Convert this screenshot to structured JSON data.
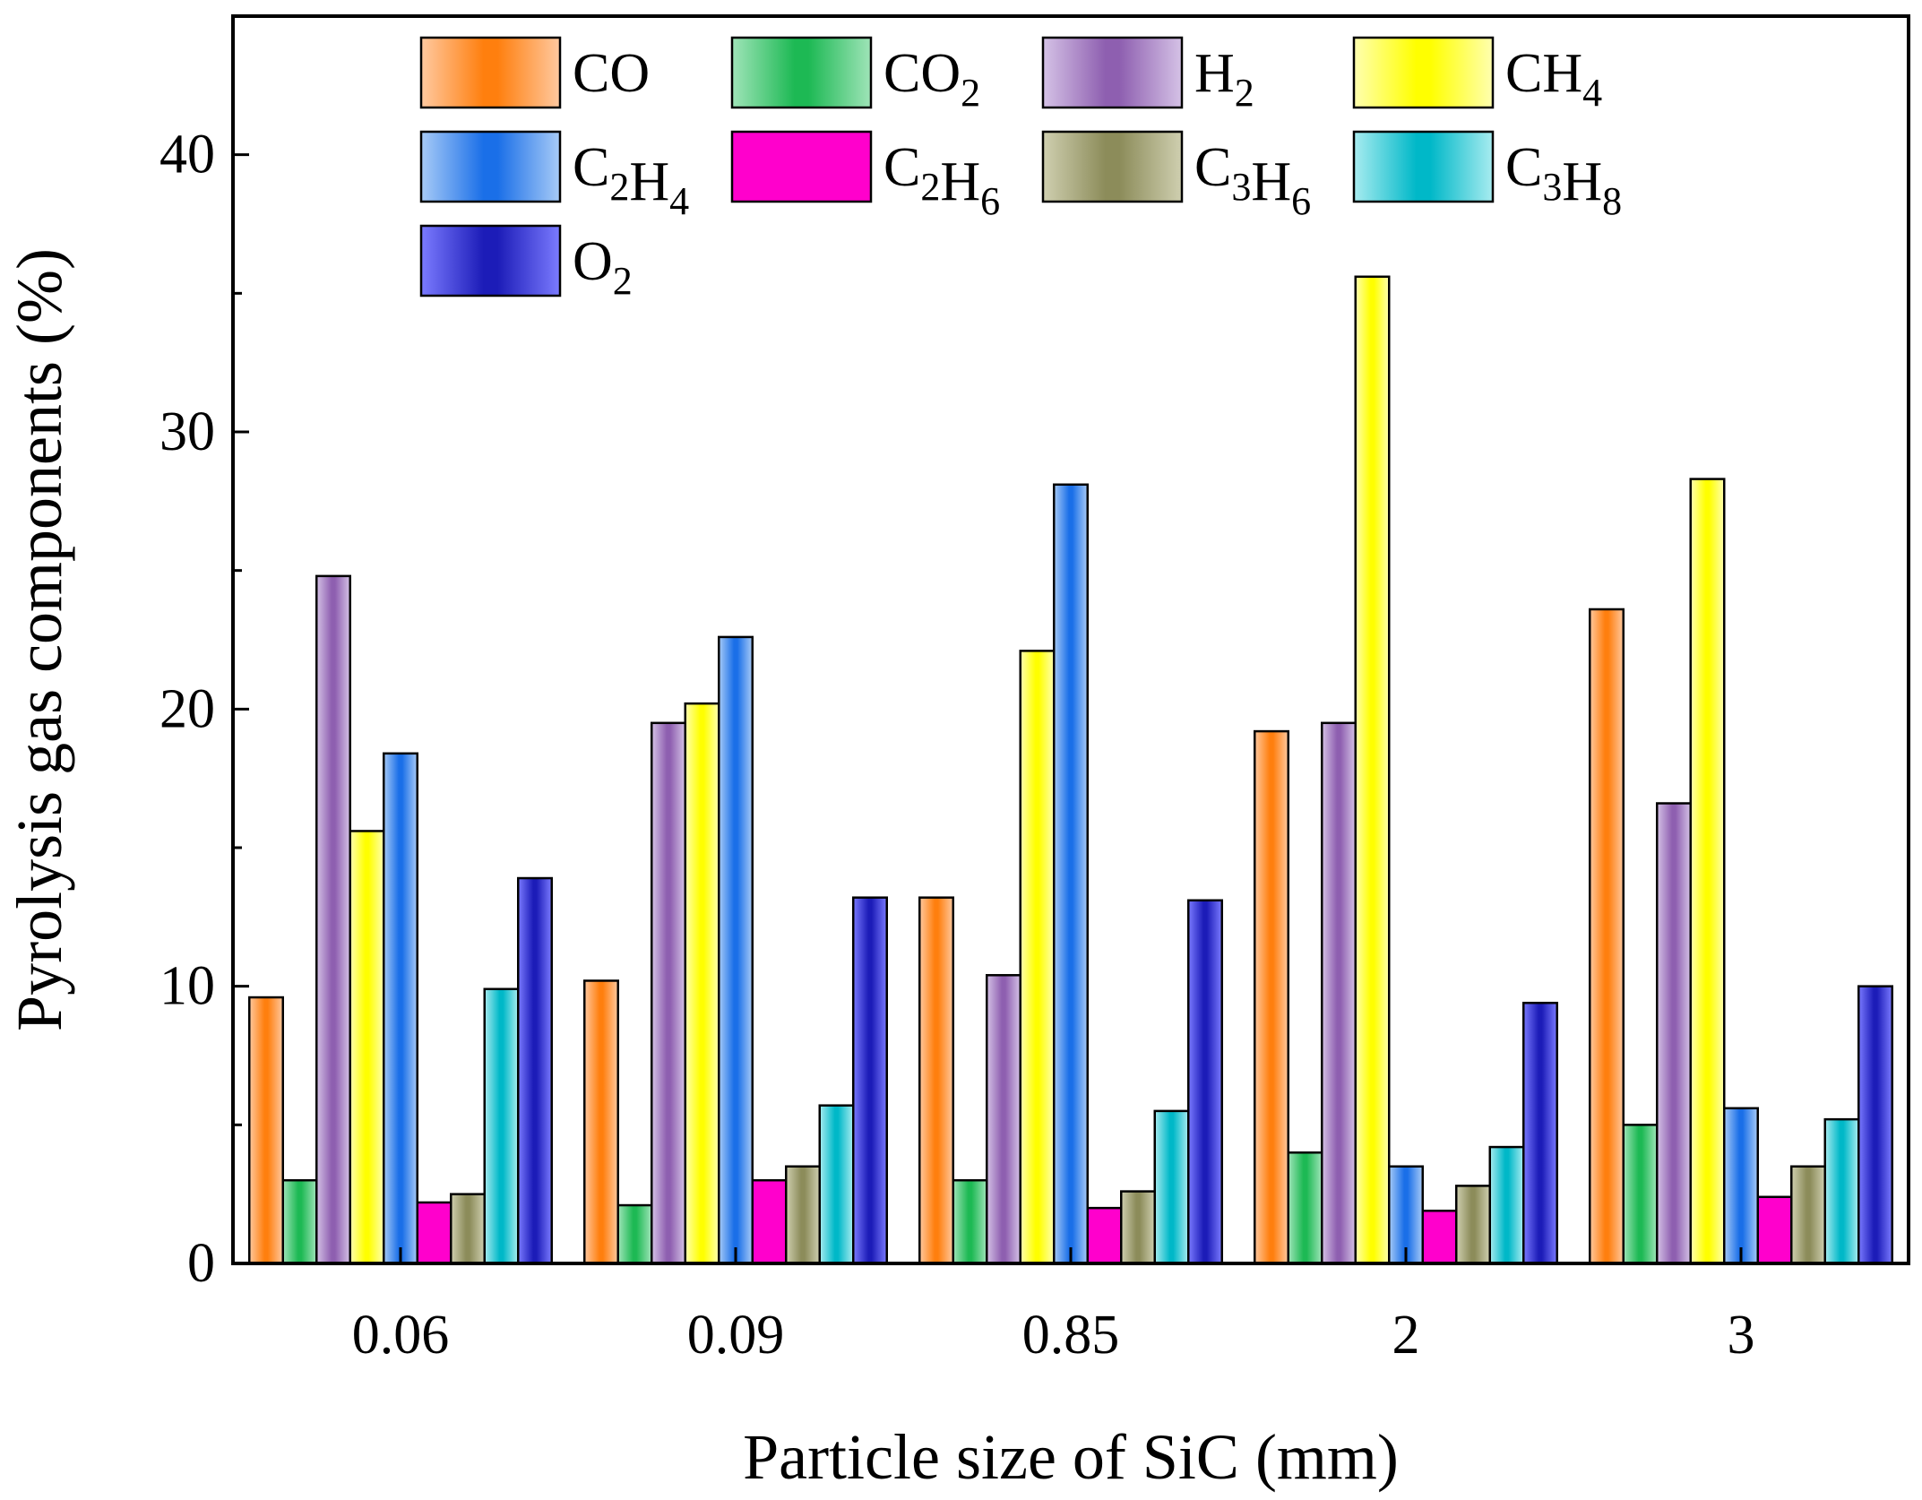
{
  "chart_data": {
    "type": "bar",
    "xlabel": "Particle size of SiC (mm)",
    "ylabel": "Pyrolysis gas components (%)",
    "ylim": [
      0,
      45
    ],
    "yticks": [
      "0",
      "10",
      "20",
      "30",
      "40"
    ],
    "categories": [
      "0.06",
      "0.09",
      "0.85",
      "2",
      "3"
    ],
    "legend_placement": "top-left, inside plot",
    "series": [
      {
        "name": "CO",
        "label_main": "CO",
        "label_parts": [
          [
            "CO",
            ""
          ]
        ],
        "color": "#ff7f0e",
        "light": "#ffc9a0",
        "values": [
          9.6,
          10.2,
          13.2,
          19.2,
          23.6
        ]
      },
      {
        "name": "CO2",
        "label_parts": [
          [
            "CO",
            "2"
          ]
        ],
        "color": "#1db954",
        "light": "#9fe4b8",
        "values": [
          3.0,
          2.1,
          3.0,
          4.0,
          5.0
        ]
      },
      {
        "name": "H2",
        "label_parts": [
          [
            "H",
            "2"
          ]
        ],
        "color": "#8e5fb0",
        "light": "#d5c2e6",
        "values": [
          24.8,
          19.5,
          10.4,
          19.5,
          16.6
        ]
      },
      {
        "name": "CH4",
        "label_parts": [
          [
            "CH",
            "4"
          ]
        ],
        "color": "#ffff00",
        "light": "#ffffb0",
        "values": [
          15.6,
          20.2,
          22.1,
          35.6,
          28.3
        ]
      },
      {
        "name": "C2H4",
        "label_parts": [
          [
            "C",
            "2"
          ],
          [
            "H",
            "4"
          ]
        ],
        "color": "#1a6fe8",
        "light": "#a8cbf7",
        "values": [
          18.4,
          22.6,
          28.1,
          3.5,
          5.6
        ]
      },
      {
        "name": "C2H6",
        "label_parts": [
          [
            "C",
            "2"
          ],
          [
            "H",
            "6"
          ]
        ],
        "color": "#ff00cc",
        "light": "#ff00cc",
        "values": [
          2.2,
          3.0,
          2.0,
          1.9,
          2.4
        ]
      },
      {
        "name": "C3H6",
        "label_parts": [
          [
            "C",
            "3"
          ],
          [
            "H",
            "6"
          ]
        ],
        "color": "#8c8c5a",
        "light": "#cfcfb0",
        "values": [
          2.5,
          3.5,
          2.6,
          2.8,
          3.5
        ]
      },
      {
        "name": "C3H8",
        "label_parts": [
          [
            "C",
            "3"
          ],
          [
            "H",
            "8"
          ]
        ],
        "color": "#00b8c8",
        "light": "#a8ecf0",
        "values": [
          9.9,
          5.7,
          5.5,
          4.2,
          5.2
        ]
      },
      {
        "name": "O2",
        "label_parts": [
          [
            "O",
            "2"
          ]
        ],
        "color": "#1c1cb8",
        "light": "#7b7bff",
        "values": [
          13.9,
          13.2,
          13.1,
          9.4,
          10.0
        ]
      }
    ]
  }
}
